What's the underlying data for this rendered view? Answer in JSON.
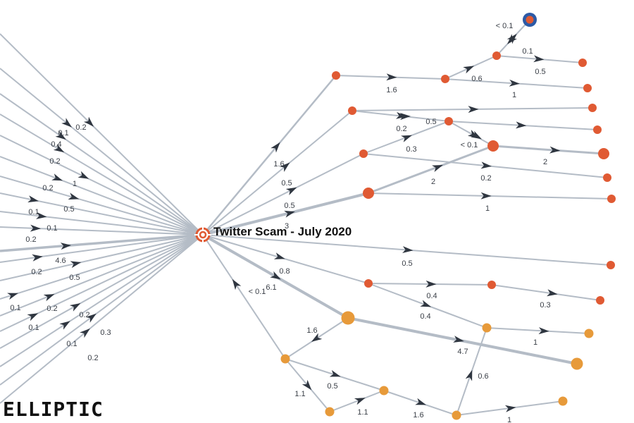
{
  "diagram": {
    "title": "Twitter Scam - July 2020",
    "logo_text": "ELLIPTIC",
    "colors": {
      "edge": "#b4bcc6",
      "arrow": "#2f3640",
      "outgoing_node": "#e05a33",
      "return_node": "#e79a3a",
      "highlight_ring": "#2c5aa6",
      "hub": "#e05a33"
    },
    "incoming_edge_labels": [
      "0.2",
      "0.1",
      "0.4",
      "0.2",
      "1",
      "0.2",
      "0.5",
      "0.1",
      "0.1",
      "0.2",
      "4.6",
      "0.2",
      "0.5",
      "0.1",
      "0.2",
      "0.1",
      "0.2",
      "0.1",
      "0.3",
      "0.2"
    ],
    "outgoing_edge_labels": [
      "1.6",
      "0.5",
      "0.5",
      "3",
      "0.5",
      "0.8",
      "6.1",
      "< 0.1",
      "1.6",
      "0.6",
      "1",
      "< 0.1",
      "0.1",
      "0.5",
      "0.2",
      "0.3",
      "0.4",
      "0.5",
      "< 0.1",
      "2",
      "0.2",
      "2",
      "1",
      "0.4",
      "0.4",
      "0.3",
      "1",
      "4.7",
      "1.6",
      "0.6",
      "1.1",
      "0.5",
      "1.1",
      "1.6",
      "1"
    ]
  }
}
